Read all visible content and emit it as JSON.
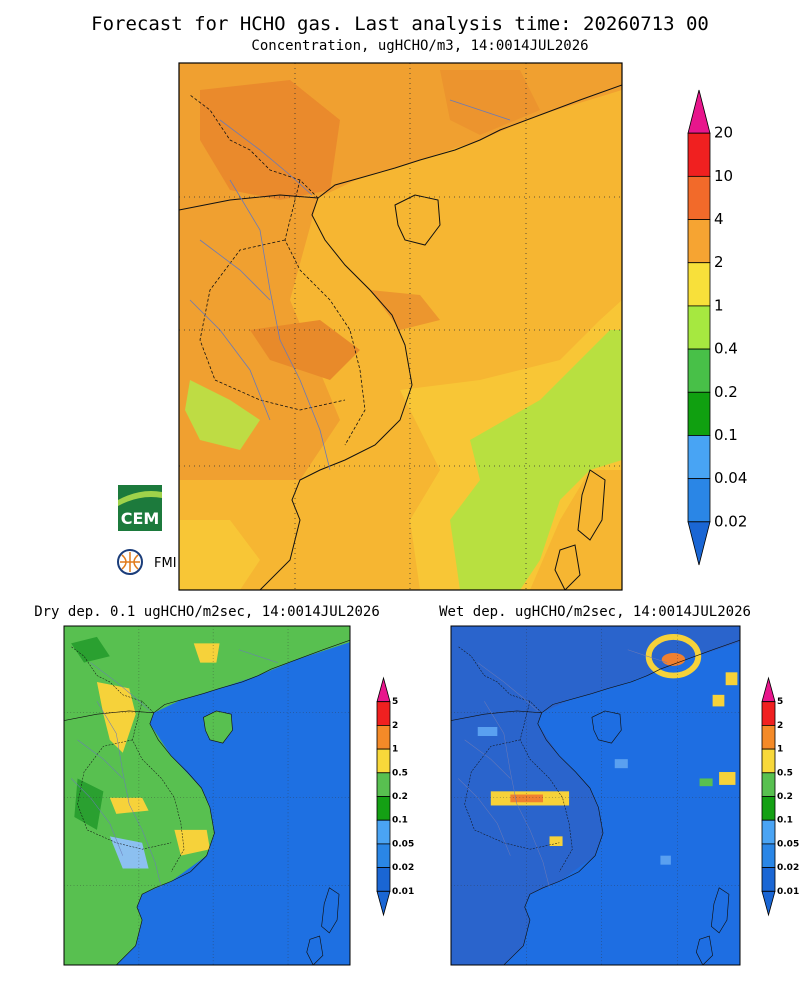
{
  "header": {
    "title": "Forecast for HCHO gas. Last analysis time: 20260713 00",
    "subtitle": "Concentration, ugHCHO/m3, 14:0014JUL2026"
  },
  "main_colorbar": [
    "20",
    "10",
    "4",
    "2",
    "1",
    "0.4",
    "0.2",
    "0.1",
    "0.04",
    "0.02"
  ],
  "panels": [
    {
      "title": "Dry dep. 0.1 ugHCHO/m2sec, 14:0014JUL2026",
      "colorbar": [
        "5",
        "2",
        "1",
        "0.5",
        "0.2",
        "0.1",
        "0.05",
        "0.02",
        "0.01"
      ]
    },
    {
      "title": "Wet dep. ugHCHO/m2sec, 14:0014JUL2026",
      "colorbar": [
        "5",
        "2",
        "1",
        "0.5",
        "0.2",
        "0.1",
        "0.05",
        "0.02",
        "0.01"
      ]
    }
  ],
  "logos": [
    "CEM",
    "FMI"
  ]
}
